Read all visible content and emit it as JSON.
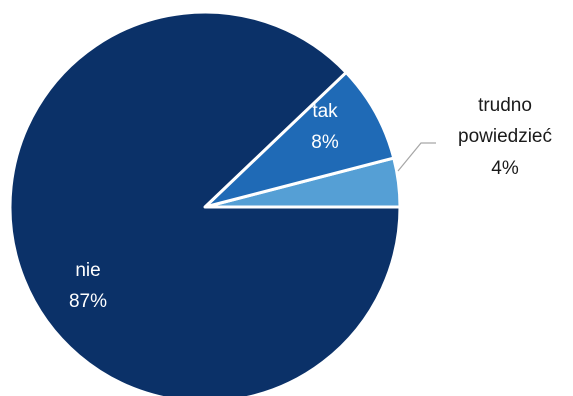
{
  "chart_data": {
    "type": "pie",
    "title": "",
    "slices": [
      {
        "label": "tak",
        "value": 8,
        "value_label": "8%",
        "color": "#1f6ab6",
        "label_color": "#ffffff"
      },
      {
        "label": "nie",
        "value": 87,
        "value_label": "87%",
        "color": "#0b3168",
        "label_color": "#ffffff"
      },
      {
        "label": "trudno powiedzieć",
        "label_lines": [
          "trudno",
          "powiedzieć"
        ],
        "value": 4,
        "value_label": "4%",
        "color": "#559fd5",
        "label_color": "#1a1a1a"
      }
    ],
    "legend": "none",
    "label_position": "on-slice, smallest slice outside with leader line"
  }
}
